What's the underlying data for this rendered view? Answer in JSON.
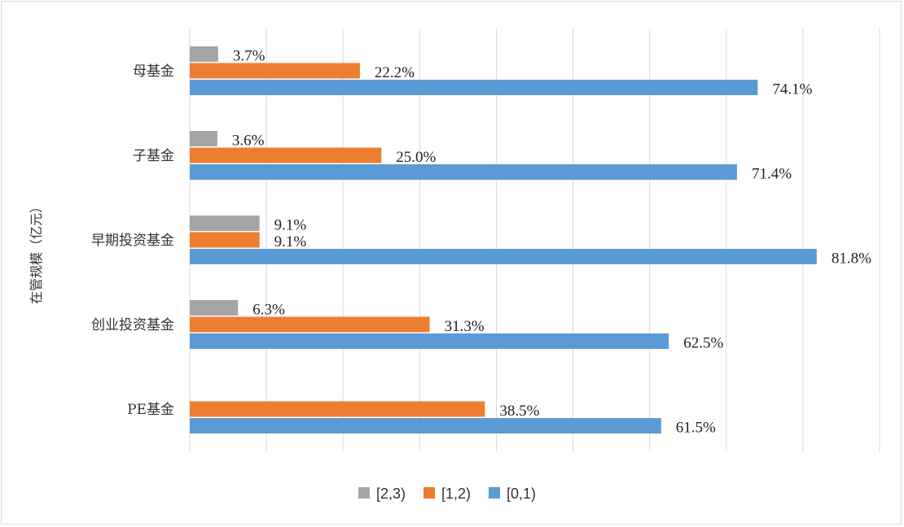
{
  "chart_data": {
    "type": "bar",
    "orientation": "horizontal",
    "ylabel": "在管规模（亿元）",
    "categories": [
      "母基金",
      "子基金",
      "早期投资基金",
      "创业投资基金",
      "PE基金"
    ],
    "series": [
      {
        "name": "[2,3)",
        "color": "#a5a5a5",
        "values": [
          3.7,
          3.6,
          9.1,
          6.3,
          null
        ],
        "labels": [
          "3.7%",
          "3.6%",
          "9.1%",
          "6.3%",
          ""
        ]
      },
      {
        "name": "[1,2)",
        "color": "#ed7d31",
        "values": [
          22.2,
          25.0,
          9.1,
          31.3,
          38.5
        ],
        "labels": [
          "22.2%",
          "25.0%",
          "9.1%",
          "31.3%",
          "38.5%"
        ]
      },
      {
        "name": "[0,1)",
        "color": "#5b9bd5",
        "values": [
          74.1,
          71.4,
          81.8,
          62.5,
          61.5
        ],
        "labels": [
          "74.1%",
          "71.4%",
          "81.8%",
          "62.5%",
          "61.5%"
        ]
      }
    ],
    "xlim": [
      0,
      90
    ],
    "grid": true,
    "legend": "bottom"
  }
}
